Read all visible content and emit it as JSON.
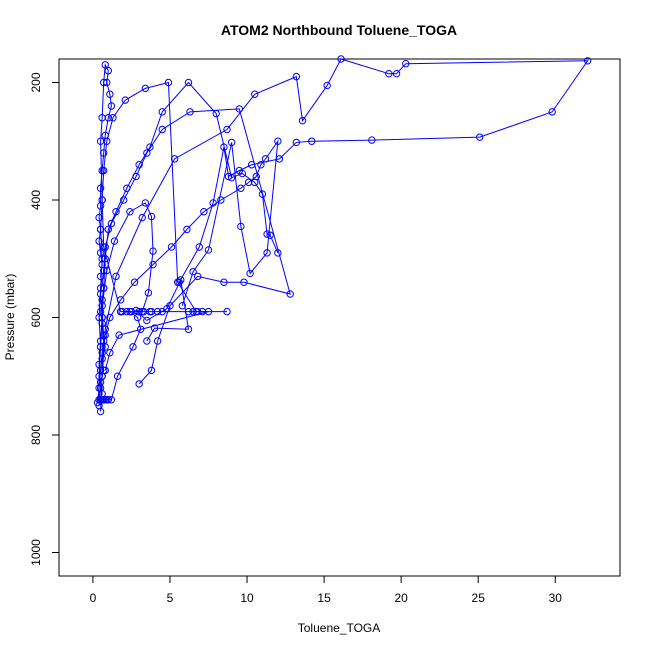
{
  "chart_data": {
    "type": "line",
    "title": "ATOM2 Northbound Toluene_TOGA",
    "xlabel": "Toluene_TOGA",
    "ylabel": "Pressure (mbar)",
    "xlim": [
      -2.2,
      34.2
    ],
    "ylim": [
      1040,
      160
    ],
    "y_reversed": true,
    "xticks": [
      0,
      5,
      10,
      15,
      20,
      25,
      30
    ],
    "yticks": [
      200,
      400,
      600,
      800,
      1000
    ],
    "color": "#0000ff",
    "marker": "open-circle",
    "grid": false,
    "legend": "none",
    "series": [
      {
        "x": [
          0.5,
          0.6,
          0.5,
          0.7,
          0.6,
          0.8,
          0.7,
          0.6,
          0.5,
          0.6,
          0.7,
          0.5,
          0.6,
          0.5,
          0.4,
          0.5,
          0.4,
          0.5,
          0.5,
          0.6,
          0.7,
          0.8,
          1.0,
          1.2,
          1.1,
          0.9,
          1.0,
          0.8,
          0.7,
          0.6,
          0.5,
          0.6,
          0.7,
          1.8,
          2.5,
          3.0,
          3.3,
          3.8,
          4.2,
          8.7,
          6.8,
          6.5,
          6.2,
          4.5,
          3.7,
          2.2,
          1.8
        ],
        "y": [
          740,
          730,
          710,
          690,
          670,
          650,
          630,
          610,
          590,
          570,
          550,
          530,
          510,
          490,
          470,
          450,
          430,
          410,
          380,
          350,
          320,
          290,
          260,
          240,
          220,
          200,
          180,
          170,
          200,
          260,
          300,
          400,
          480,
          590,
          590,
          590,
          590,
          590,
          590,
          590,
          590,
          590,
          590,
          590,
          590,
          590,
          590
        ]
      },
      {
        "x": [
          0.4,
          0.5,
          0.4,
          0.5,
          0.6,
          0.5,
          0.7,
          0.8,
          1.2,
          2.0,
          2.8,
          3.5,
          4.5,
          6.3,
          9.5,
          12.8,
          9.8,
          8.5,
          6.8,
          5.0,
          4.2,
          3.8,
          3.0
        ],
        "y": [
          750,
          720,
          680,
          640,
          600,
          560,
          520,
          480,
          440,
          400,
          360,
          320,
          280,
          250,
          245,
          560,
          540,
          540,
          530,
          580,
          640,
          690,
          713
        ]
      },
      {
        "x": [
          0.5,
          0.6,
          0.7,
          0.8,
          1.0,
          1.5,
          2.2,
          3.0,
          3.7,
          4.5,
          6.2,
          8.0,
          9.0,
          9.7,
          10.5,
          11.0,
          11.3,
          11.5,
          12.0
        ],
        "y": [
          650,
          600,
          550,
          500,
          450,
          420,
          380,
          340,
          310,
          250,
          200,
          253,
          362,
          355,
          370,
          390,
          458,
          460,
          490
        ]
      },
      {
        "x": [
          0.6,
          0.8,
          1.5,
          3.2,
          5.3,
          8.7,
          10.5,
          13.2,
          13.6,
          15.2,
          16.1,
          19.2,
          19.7,
          20.3,
          32.1,
          29.8,
          25.1,
          18.1,
          14.2,
          13.2,
          12.1,
          10.3,
          9.5,
          8.8,
          8.5,
          7.8,
          6.9,
          5.6
        ],
        "y": [
          700,
          620,
          530,
          430,
          330,
          280,
          220,
          190,
          265,
          205,
          160,
          185,
          185,
          168,
          163,
          250,
          293,
          298,
          300,
          302,
          330,
          340,
          350,
          360,
          310,
          405,
          480,
          540
        ]
      },
      {
        "x": [
          0.3,
          0.4,
          0.5,
          0.6,
          0.8,
          1.1,
          1.8,
          2.7,
          3.9,
          5.1,
          6.1,
          7.2,
          8.3,
          9.6,
          10.1,
          10.6,
          10.9,
          11.2,
          12.0,
          11.3,
          10.2,
          9.6,
          9.0,
          7.5,
          6.5,
          5.8
        ],
        "y": [
          745,
          720,
          690,
          660,
          630,
          600,
          570,
          540,
          510,
          480,
          450,
          420,
          400,
          380,
          370,
          360,
          340,
          330,
          300,
          490,
          525,
          445,
          302,
          485,
          522,
          580
        ]
      },
      {
        "x": [
          0.5,
          0.6,
          0.7,
          0.6,
          0.9,
          1.4,
          2.4,
          3.4,
          3.8,
          3.9,
          3.6,
          3.2,
          2.8,
          3.5,
          4.8,
          5.7,
          6.2,
          4.0,
          3.5
        ],
        "y": [
          760,
          700,
          640,
          580,
          520,
          470,
          420,
          405,
          428,
          487,
          558,
          590,
          588,
          605,
          585,
          536,
          620,
          618,
          640
        ]
      },
      {
        "x": [
          0.4,
          0.4,
          0.5,
          0.4,
          0.5,
          0.6,
          0.5,
          0.6,
          0.7,
          0.9,
          1.3,
          2.1,
          3.4,
          4.9,
          5.5,
          6.7,
          7.1,
          7.5,
          1.7,
          1.1,
          0.8
        ],
        "y": [
          740,
          700,
          650,
          600,
          550,
          500,
          450,
          400,
          350,
          300,
          260,
          230,
          210,
          200,
          540,
          590,
          590,
          590,
          630,
          660,
          690
        ]
      },
      {
        "x": [
          0.6,
          0.7,
          0.5,
          0.6,
          0.7,
          0.8,
          0.9,
          1.0,
          1.2,
          1.6,
          2.6,
          3.1,
          2.9,
          2.4,
          1.9
        ],
        "y": [
          740,
          740,
          740,
          740,
          740,
          740,
          740,
          740,
          740,
          700,
          650,
          620,
          600,
          590,
          590
        ]
      }
    ]
  }
}
